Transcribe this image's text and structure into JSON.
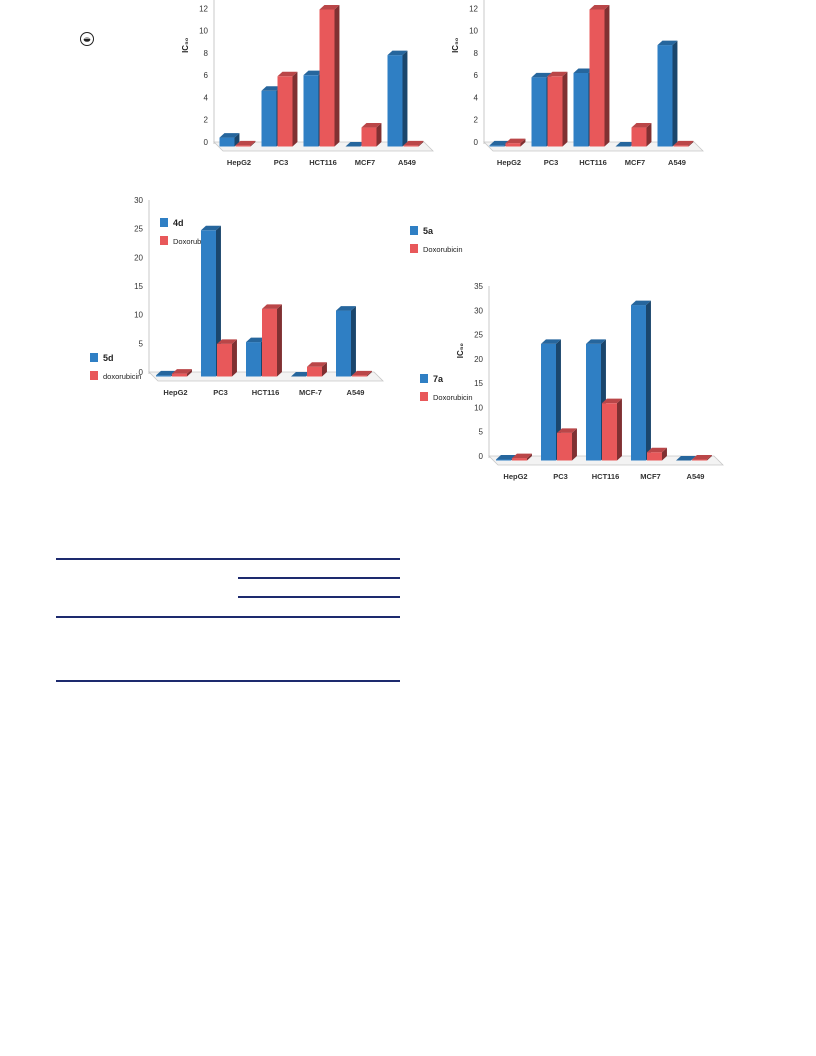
{
  "colors": {
    "series_blue": "#2f7fc4",
    "series_red": "#e8585a",
    "table_rule": "#1d2a6e"
  },
  "corner_mark": {
    "icon": "circled-dot-icon"
  },
  "chart_data": [
    {
      "type": "bar",
      "categories": [
        "HepG2",
        "PC3",
        "HCT116",
        "MCF7",
        "A549"
      ],
      "ylabel": "IC₅₀",
      "ylim": [
        0,
        14
      ],
      "yticks": [
        0,
        2,
        4,
        6,
        8,
        10,
        12,
        14
      ],
      "legend_position": "left",
      "series": [
        {
          "name": "4d",
          "color": "#2f7fc4",
          "values": [
            0.8,
            5.0,
            6.4,
            0,
            8.2
          ]
        },
        {
          "name": "Doxorubicin",
          "color": "#e8585a",
          "values": [
            0.1,
            6.3,
            12.3,
            1.7,
            0.1
          ]
        }
      ]
    },
    {
      "type": "bar",
      "categories": [
        "HepG2",
        "PC3",
        "HCT116",
        "MCF7",
        "A549"
      ],
      "ylabel": "IC₅₀",
      "ylim": [
        0,
        14
      ],
      "yticks": [
        0,
        2,
        4,
        6,
        8,
        10,
        12,
        14
      ],
      "legend_position": "left",
      "series": [
        {
          "name": "5a",
          "color": "#2f7fc4",
          "values": [
            0.1,
            6.2,
            6.6,
            0,
            9.1
          ]
        },
        {
          "name": "Doxorubicin",
          "color": "#e8585a",
          "values": [
            0.3,
            6.3,
            12.3,
            1.7,
            0.1
          ]
        }
      ]
    },
    {
      "type": "bar",
      "categories": [
        "HepG2",
        "PC3",
        "HCT116",
        "MCF-7",
        "A549"
      ],
      "ylim": [
        0,
        30
      ],
      "yticks": [
        0,
        5,
        10,
        15,
        20,
        25,
        30
      ],
      "legend_position": "left",
      "series": [
        {
          "name": "5d",
          "color": "#2f7fc4",
          "values": [
            0.2,
            25.5,
            6.0,
            0,
            11.5
          ]
        },
        {
          "name": "doxorubicin",
          "color": "#e8585a",
          "values": [
            0.5,
            5.7,
            11.8,
            1.7,
            0.2
          ]
        }
      ]
    },
    {
      "type": "bar",
      "categories": [
        "HepG2",
        "PC3",
        "HCT116",
        "MCF7",
        "A549"
      ],
      "ylabel": "IC₅₀",
      "ylim": [
        0,
        35
      ],
      "yticks": [
        0,
        5,
        10,
        15,
        20,
        25,
        30,
        35
      ],
      "legend_position": "left",
      "series": [
        {
          "name": "7a",
          "color": "#2f7fc4",
          "values": [
            0.2,
            24.0,
            24.0,
            32.0,
            0
          ]
        },
        {
          "name": "Doxorubicin",
          "color": "#e8585a",
          "values": [
            0.5,
            5.7,
            11.8,
            1.7,
            0.2
          ]
        }
      ]
    }
  ]
}
